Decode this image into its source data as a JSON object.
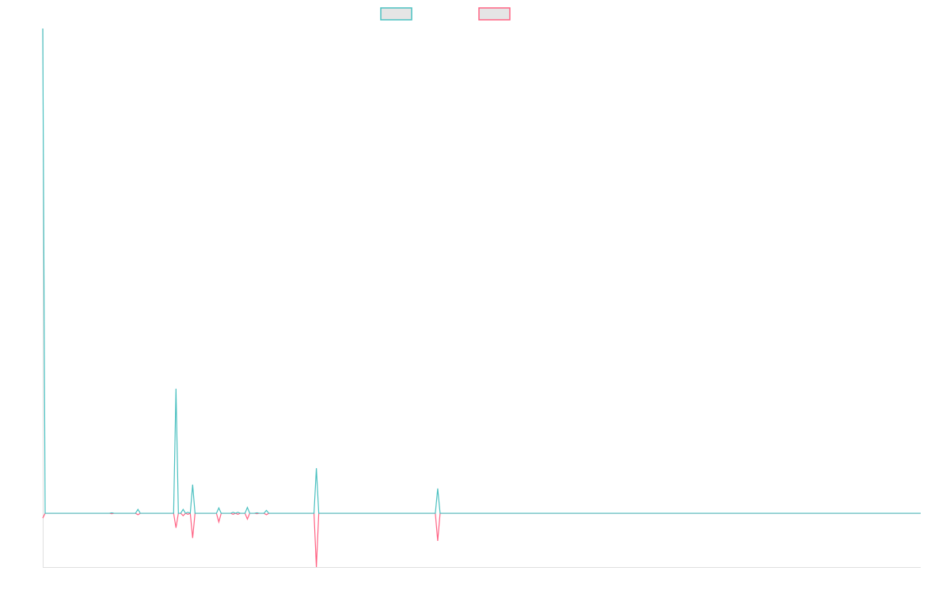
{
  "chart_data": {
    "type": "line",
    "title": "",
    "xlabel": "",
    "ylabel": "",
    "x_count": 370,
    "xlim": [
      0,
      369
    ],
    "ylim": [
      -11.1,
      100
    ],
    "grid": false,
    "legend": {
      "placement": "top",
      "labels": [
        "",
        ""
      ]
    },
    "default_value": 0,
    "series": [
      {
        "color": "#4bc0c0",
        "points": [
          [
            0,
            100
          ],
          [
            29,
            0.1
          ],
          [
            40,
            0.8
          ],
          [
            56,
            25.7
          ],
          [
            59,
            0.8
          ],
          [
            61,
            0.2
          ],
          [
            63,
            5.9
          ],
          [
            74,
            1.1
          ],
          [
            80,
            0.2
          ],
          [
            82,
            0.2
          ],
          [
            86,
            1.2
          ],
          [
            90,
            0.1
          ],
          [
            94,
            0.6
          ],
          [
            115,
            9.3
          ],
          [
            166,
            5.1
          ]
        ]
      },
      {
        "color": "#ff6384",
        "points": [
          [
            0,
            -1
          ],
          [
            29,
            -0.1
          ],
          [
            40,
            -0.3
          ],
          [
            56,
            -3
          ],
          [
            59,
            -0.5
          ],
          [
            61,
            -0.2
          ],
          [
            63,
            -5.1
          ],
          [
            74,
            -1.8
          ],
          [
            80,
            -0.2
          ],
          [
            82,
            -0.2
          ],
          [
            86,
            -1.2
          ],
          [
            90,
            -0.1
          ],
          [
            94,
            -0.3
          ],
          [
            115,
            -11.1
          ],
          [
            166,
            -5.7
          ]
        ]
      }
    ],
    "legend_fill": "#e5e5e5",
    "axis_color": "#e0e0e0"
  }
}
